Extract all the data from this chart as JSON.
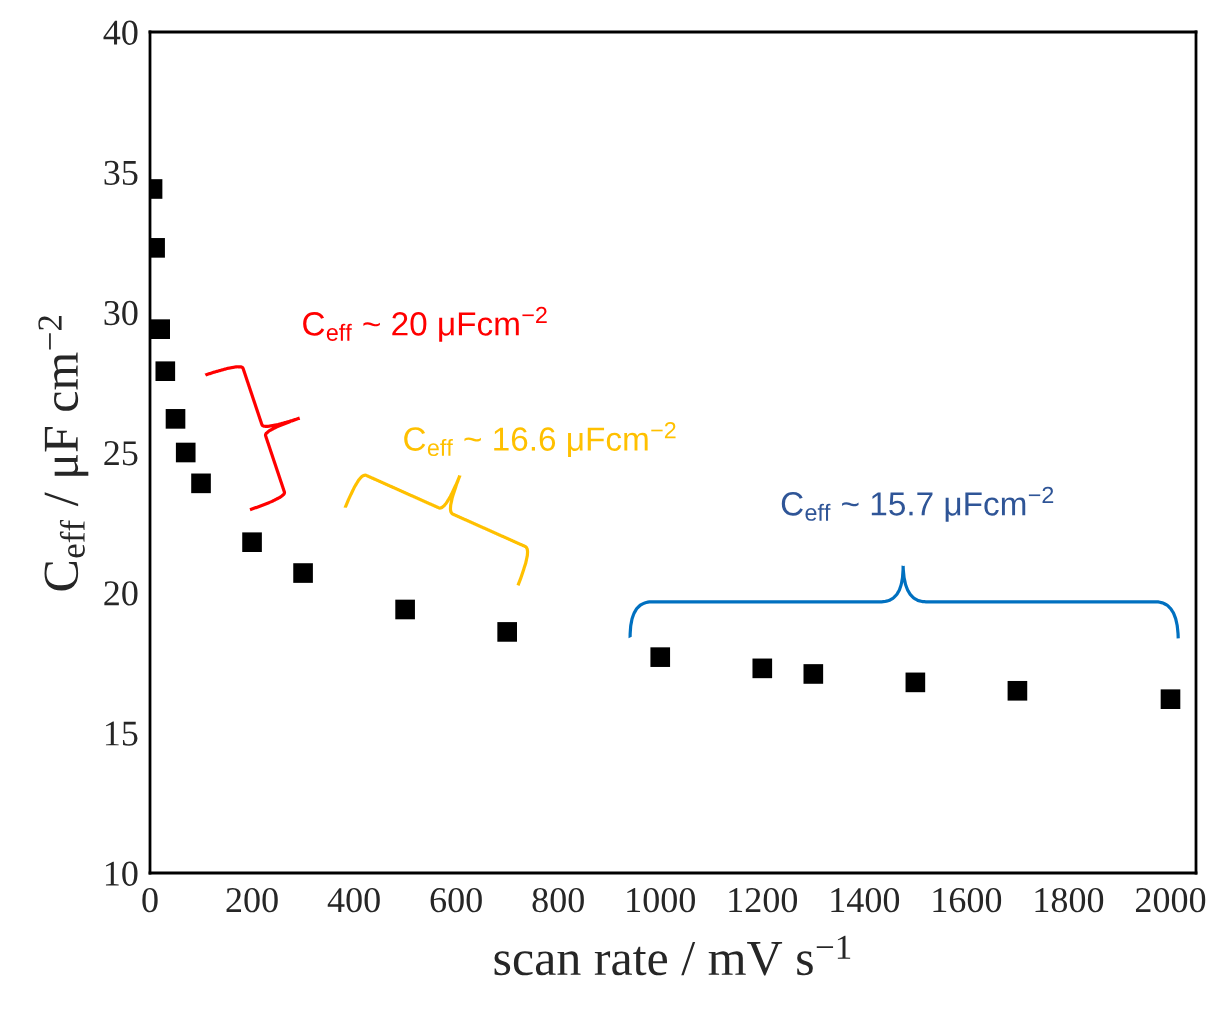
{
  "chart_data": {
    "type": "scatter",
    "xlabel": "scan rate / mV s$^{−1}$",
    "ylabel": "C$_{eff}$ / μF cm$^{−2}$",
    "x": [
      5,
      10,
      20,
      30,
      50,
      70,
      100,
      200,
      300,
      500,
      700,
      1000,
      1200,
      1300,
      1500,
      1700,
      2000
    ],
    "series": [
      {
        "color": "#000000",
        "values": [
          34.4,
          32.3,
          29.4,
          27.9,
          26.2,
          25.0,
          23.9,
          21.8,
          20.7,
          19.4,
          18.6,
          17.7,
          17.3,
          17.1,
          16.8,
          16.5,
          16.2
        ]
      }
    ],
    "marker": "square",
    "xlim": [
      0,
      2050
    ],
    "ylim": [
      10,
      40
    ],
    "xticks": [
      0,
      200,
      400,
      600,
      800,
      1000,
      1200,
      1400,
      1600,
      1800,
      2000
    ],
    "yticks": [
      10,
      15,
      20,
      25,
      30,
      35,
      40
    ],
    "grid": false,
    "legend": false,
    "annotations": [
      "C$_{eff}$ ~ 20 μFcm$^{−2}$",
      "C$_{eff}$ ~ 16.6 μFcm$^{−2}$",
      "C$_{eff}$ ~ 15.7 μFcm$^{−2}$"
    ]
  }
}
